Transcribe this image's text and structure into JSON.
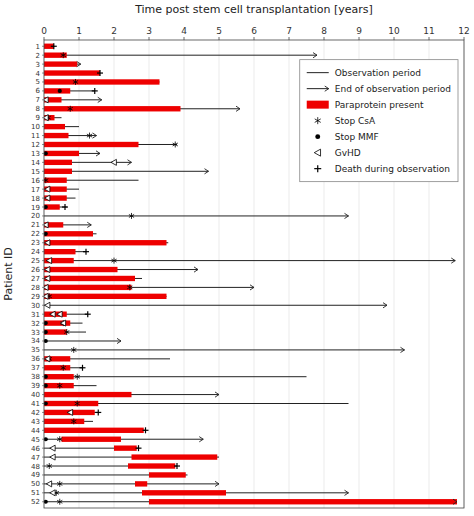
{
  "chart_data": {
    "type": "swimmer",
    "title": "Time post stem cell transplantation [years]",
    "ylabel": "Patient ID",
    "xlim": [
      0,
      12
    ],
    "xticks": [
      0,
      1,
      2,
      3,
      4,
      5,
      6,
      7,
      8,
      9,
      10,
      11,
      12
    ],
    "grid": true,
    "legend": "upper right",
    "orientation": "horizontal",
    "categories": [
      "1",
      "2",
      "3",
      "4",
      "5",
      "6",
      "7",
      "8",
      "9",
      "10",
      "11",
      "12",
      "13",
      "14",
      "15",
      "16",
      "17",
      "18",
      "19",
      "20",
      "21",
      "22",
      "23",
      "24",
      "25",
      "26",
      "27",
      "28",
      "29",
      "30",
      "31",
      "32",
      "33",
      "34",
      "35",
      "36",
      "37",
      "38",
      "39",
      "40",
      "41",
      "42",
      "43",
      "44",
      "45",
      "46",
      "47",
      "48",
      "49",
      "50",
      "51",
      "52"
    ],
    "series": [
      {
        "name": "Observation period",
        "type": "line",
        "color": "#222222",
        "values": [
          0.28,
          7.8,
          1.05,
          1.6,
          3.3,
          1.45,
          1.65,
          5.6,
          0.5,
          1.0,
          1.5,
          3.8,
          1.6,
          2.5,
          4.7,
          2.7,
          1.0,
          0.9,
          0.65,
          8.7,
          1.35,
          1.5,
          3.55,
          1.2,
          11.75,
          4.4,
          2.8,
          6.0,
          3.5,
          9.8,
          1.25,
          1.1,
          1.2,
          2.2,
          10.3,
          3.6,
          1.1,
          7.5,
          1.5,
          5.0,
          8.7,
          1.55,
          1.4,
          2.9,
          4.55,
          2.7,
          5.0,
          3.8,
          4.1,
          5.0,
          8.7,
          11.8
        ]
      },
      {
        "name": "End of observation period",
        "type": "arrow",
        "color": "#222222",
        "values": [
          null,
          7.8,
          1.05,
          null,
          null,
          null,
          1.65,
          5.6,
          null,
          null,
          1.5,
          null,
          1.6,
          2.5,
          4.7,
          null,
          null,
          null,
          null,
          8.7,
          1.35,
          null,
          null,
          null,
          11.75,
          4.4,
          null,
          6.0,
          null,
          9.8,
          null,
          null,
          null,
          2.2,
          10.3,
          null,
          null,
          null,
          null,
          5.0,
          null,
          null,
          null,
          null,
          4.55,
          null,
          null,
          null,
          null,
          5.0,
          8.7,
          11.8
        ]
      },
      {
        "name": "Paraprotein present",
        "type": "bar",
        "color": "#ee0000",
        "values": [
          [
            [
              0,
              0.28
            ]
          ],
          [
            [
              0,
              0.65
            ]
          ],
          [
            [
              0,
              0.95
            ]
          ],
          [
            [
              0,
              1.6
            ]
          ],
          [
            [
              0,
              3.3
            ]
          ],
          [
            [
              0,
              0.75
            ]
          ],
          [
            [
              0,
              0.5
            ]
          ],
          [
            [
              0,
              3.9
            ]
          ],
          [
            [
              0,
              0.3
            ]
          ],
          [
            [
              0,
              0.6
            ]
          ],
          [
            [
              0,
              0.7
            ]
          ],
          [
            [
              0,
              2.7
            ]
          ],
          [
            [
              0,
              1.0
            ]
          ],
          [
            [
              0,
              0.8
            ]
          ],
          [
            [
              0,
              0.8
            ]
          ],
          [
            [
              0,
              0.65
            ]
          ],
          [
            [
              0,
              0.65
            ]
          ],
          [
            [
              0,
              0.65
            ]
          ],
          [
            [
              0,
              0.45
            ]
          ],
          [],
          [
            [
              0,
              0.55
            ]
          ],
          [
            [
              0,
              1.4
            ]
          ],
          [
            [
              0,
              3.5
            ]
          ],
          [
            [
              0,
              0.9
            ]
          ],
          [
            [
              0,
              0.85
            ]
          ],
          [
            [
              0,
              2.1
            ]
          ],
          [
            [
              0,
              2.6
            ]
          ],
          [
            [
              0,
              2.5
            ]
          ],
          [
            [
              0,
              3.5
            ]
          ],
          [],
          [
            [
              0,
              0.65
            ]
          ],
          [
            [
              0,
              0.75
            ]
          ],
          [
            [
              0,
              0.65
            ]
          ],
          [],
          [],
          [
            [
              0,
              0.75
            ]
          ],
          [
            [
              0,
              0.75
            ]
          ],
          [
            [
              0,
              0.85
            ]
          ],
          [
            [
              0,
              0.85
            ]
          ],
          [
            [
              0,
              2.5
            ]
          ],
          [
            [
              0,
              1.55
            ]
          ],
          [
            [
              0,
              1.45
            ]
          ],
          [
            [
              0,
              1.15
            ]
          ],
          [
            [
              0,
              2.85
            ]
          ],
          [
            [
              0.5,
              2.2
            ]
          ],
          [
            [
              2.0,
              2.65
            ]
          ],
          [
            [
              2.5,
              4.95
            ]
          ],
          [
            [
              2.4,
              3.75
            ]
          ],
          [
            [
              3.0,
              4.05
            ]
          ],
          [
            [
              2.6,
              2.95
            ]
          ],
          [
            [
              2.8,
              5.2
            ]
          ],
          [
            [
              3.0,
              11.8
            ]
          ]
        ]
      },
      {
        "name": "Stop CsA",
        "type": "scatter",
        "marker": "star",
        "color": "#000000",
        "values": [
          [],
          [
            0.55
          ],
          [],
          [],
          [
            0.9
          ],
          [],
          [],
          [
            0.75
          ],
          [
            0.12
          ],
          [],
          [
            1.3
          ],
          [
            3.75
          ],
          [],
          [],
          [],
          [
            0.05
          ],
          [],
          [],
          [],
          [
            2.5
          ],
          [],
          [],
          [],
          [],
          [
            2.0
          ],
          [],
          [],
          [
            2.45
          ],
          [
            0.15
          ],
          [],
          [],
          [
            0.55
          ],
          [
            0.65
          ],
          [],
          [
            0.85
          ],
          [
            0.15
          ],
          [
            0.55
          ],
          [
            0.95
          ],
          [
            0.45
          ],
          [],
          [
            0.95
          ],
          [],
          [
            0.85
          ],
          [],
          [
            0.45
          ],
          [],
          [],
          [
            0.15
          ],
          [],
          [
            0.45
          ],
          [
            0.35
          ],
          [
            0.45
          ]
        ]
      },
      {
        "name": "Stop MMF",
        "type": "scatter",
        "marker": "circle",
        "color": "#000000",
        "values": [
          [],
          [],
          [],
          [],
          [],
          [
            0.45
          ],
          [],
          [],
          [],
          [],
          [],
          [],
          [
            0.05
          ],
          [],
          [],
          [],
          [],
          [],
          [
            0.05
          ],
          [],
          [],
          [
            0.05
          ],
          [],
          [],
          [],
          [],
          [],
          [],
          [],
          [],
          [],
          [
            0.05
          ],
          [
            0.05
          ],
          [
            0.05
          ],
          [],
          [],
          [],
          [
            0.05
          ],
          [
            0.05
          ],
          [],
          [
            0.05
          ],
          [],
          [],
          [],
          [
            0.05
          ],
          [],
          [],
          [],
          [],
          [],
          [],
          [
            0.05
          ]
        ]
      },
      {
        "name": "GvHD",
        "type": "scatter",
        "marker": "triangle-left",
        "color": "#000000",
        "values": [
          [],
          [],
          [],
          [],
          [],
          [],
          [
            0.05
          ],
          [],
          [
            0.05
          ],
          [],
          [],
          [],
          [],
          [
            2.0
          ],
          [],
          [],
          [
            0.1
          ],
          [
            0.1
          ],
          [],
          [],
          [
            0.05
          ],
          [],
          [
            0.1
          ],
          [],
          [
            0.15
          ],
          [
            0.1
          ],
          [
            0.1
          ],
          [
            0.05
          ],
          [
            0.05
          ],
          [
            0.1
          ],
          [
            0.25,
            0.45
          ],
          [
            0.55
          ],
          [],
          [],
          [],
          [
            0.1
          ],
          [],
          [],
          [],
          [],
          [],
          [
            0.75
          ],
          [],
          [],
          [],
          [
            0.25
          ],
          [
            0.25
          ],
          [],
          [],
          [
            0.15
          ],
          [
            0.25
          ],
          []
        ]
      },
      {
        "name": "Death during observation",
        "type": "scatter",
        "marker": "plus",
        "color": "#000000",
        "values": [
          0.28,
          null,
          null,
          1.6,
          null,
          1.45,
          null,
          null,
          null,
          null,
          null,
          null,
          null,
          null,
          null,
          null,
          null,
          null,
          0.6,
          null,
          null,
          null,
          null,
          1.2,
          null,
          null,
          null,
          null,
          null,
          null,
          1.25,
          null,
          null,
          null,
          null,
          null,
          1.1,
          null,
          null,
          null,
          null,
          1.55,
          null,
          2.9,
          null,
          2.7,
          null,
          3.8,
          null,
          null,
          null,
          null
        ]
      }
    ]
  }
}
